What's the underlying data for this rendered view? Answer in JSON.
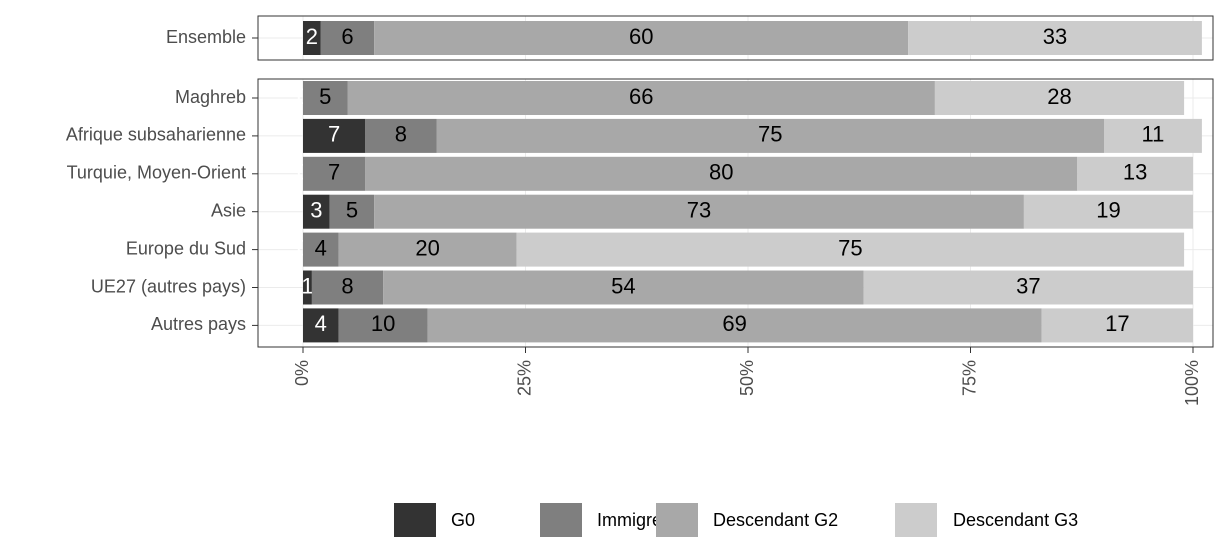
{
  "chart_data": {
    "type": "stacked-barh",
    "categories": [
      "Ensemble",
      "Maghreb",
      "Afrique subsaharienne",
      "Turquie, Moyen-Orient",
      "Asie",
      "Europe du Sud",
      "UE27 (autres pays)",
      "Autres pays"
    ],
    "series": [
      {
        "name": "G0",
        "color": "#333333",
        "values": [
          2,
          0,
          7,
          0,
          3,
          0,
          1,
          4
        ]
      },
      {
        "name": "Immigré",
        "color": "#7f7f7f",
        "values": [
          6,
          5,
          8,
          7,
          5,
          4,
          8,
          10
        ]
      },
      {
        "name": "Descendant G2",
        "color": "#a8a8a8",
        "values": [
          60,
          66,
          75,
          80,
          73,
          20,
          54,
          69
        ]
      },
      {
        "name": "Descendant G3",
        "color": "#cccccc",
        "values": [
          33,
          28,
          11,
          13,
          19,
          75,
          37,
          17
        ]
      }
    ],
    "xlim": [
      0,
      100
    ],
    "xticks": [
      {
        "value": 0,
        "label": "0%"
      },
      {
        "value": 25,
        "label": "25%"
      },
      {
        "value": 50,
        "label": "50%"
      },
      {
        "value": 75,
        "label": "75%"
      },
      {
        "value": 100,
        "label": "100%"
      }
    ],
    "grid": true,
    "legend": "bottom"
  }
}
